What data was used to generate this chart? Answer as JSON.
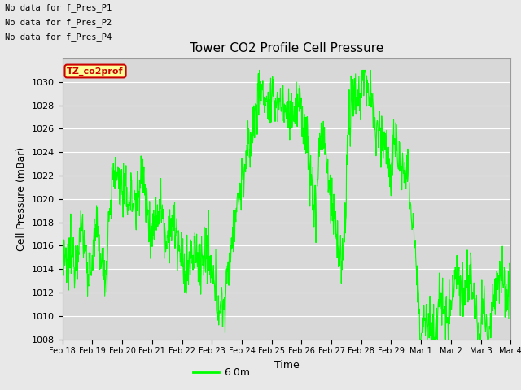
{
  "title": "Tower CO2 Profile Cell Pressure",
  "ylabel": "Cell Pressure (mBar)",
  "xlabel": "Time",
  "ylim": [
    1008,
    1032
  ],
  "yticks": [
    1008,
    1010,
    1012,
    1014,
    1016,
    1018,
    1020,
    1022,
    1024,
    1026,
    1028,
    1030
  ],
  "line_color": "#00FF00",
  "line_width": 0.8,
  "fig_bg_color": "#E8E8E8",
  "plot_bg_color": "#D8D8D8",
  "legend_label": "6.0m",
  "no_data_texts": [
    "No data for f_Pres_P1",
    "No data for f_Pres_P2",
    "No data for f_Pres_P4"
  ],
  "legend_box_color": "#FFFF99",
  "legend_box_edge": "#CC0000",
  "legend_text": "TZ_co2prof",
  "xtick_labels": [
    "Feb 18",
    "Feb 19",
    "Feb 20",
    "Feb 21",
    "Feb 22",
    "Feb 23",
    "Feb 24",
    "Feb 25",
    "Feb 26",
    "Feb 27",
    "Feb 28",
    "Feb 29",
    "Mar 1",
    "Mar 2",
    "Mar 3",
    "Mar 4"
  ],
  "bottom_legend_bg": "#FFFFFF"
}
